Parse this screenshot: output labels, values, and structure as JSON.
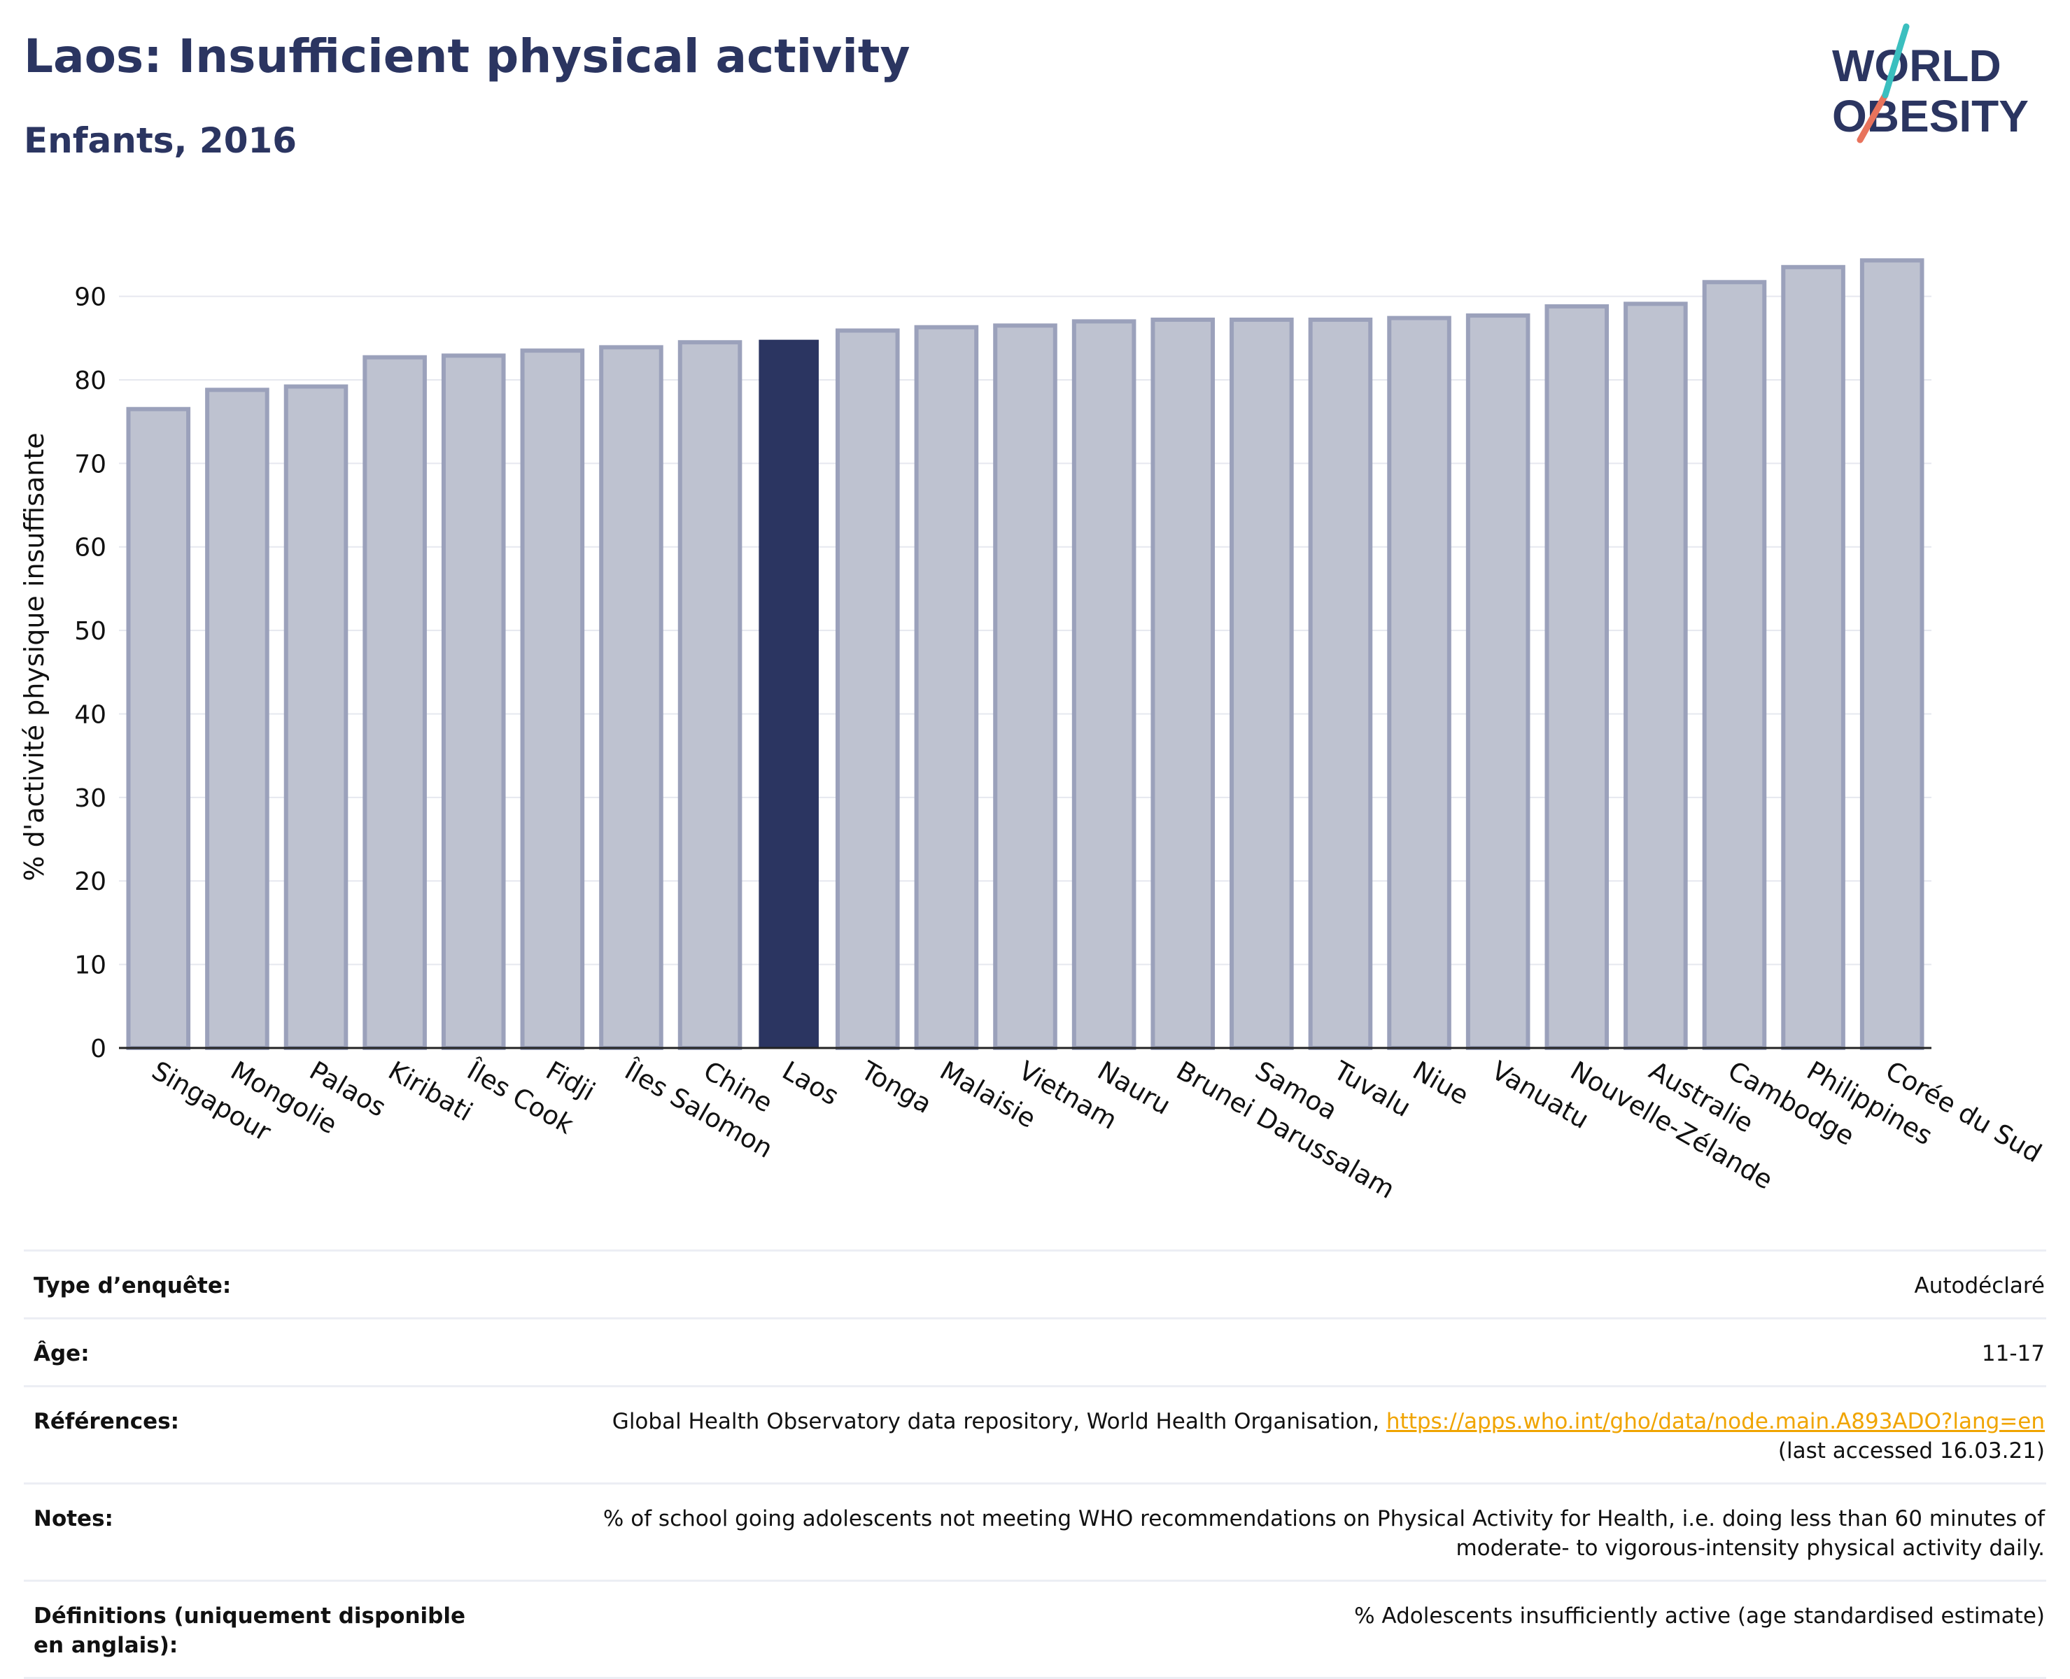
{
  "title": "Laos: Insufficient physical activity",
  "subtitle": "Enfants, 2016",
  "logo": {
    "line1": "WORLD",
    "line2": "OBESITY"
  },
  "colors": {
    "highlight": "#2b3561",
    "bar": "#bec2d0",
    "bar_edge": "#9ba1bb",
    "link": "#f0a400",
    "title": "#2b3561"
  },
  "chart_data": {
    "type": "bar",
    "ylabel": "% d'activité physique insuffisante",
    "xlabel": "",
    "ylim": [
      0,
      97
    ],
    "yticks": [
      0,
      10,
      20,
      30,
      40,
      50,
      60,
      70,
      80,
      90
    ],
    "grid": true,
    "highlight": "Laos",
    "categories": [
      "Singapour",
      "Mongolie",
      "Palaos",
      "Kiribati",
      "Îles Cook",
      "Fidji",
      "Îles Salomon",
      "Chine",
      "Laos",
      "Tonga",
      "Malaisie",
      "Vietnam",
      "Nauru",
      "Brunei Darussalam",
      "Samoa",
      "Tuvalu",
      "Niue",
      "Vanuatu",
      "Nouvelle-Zélande",
      "Australie",
      "Cambodge",
      "Philippines",
      "Corée du Sud"
    ],
    "values": [
      76.5,
      78.8,
      79.2,
      82.7,
      82.9,
      83.5,
      83.9,
      84.5,
      84.8,
      85.9,
      86.3,
      86.5,
      87.0,
      87.2,
      87.2,
      87.2,
      87.4,
      87.7,
      88.8,
      89.1,
      91.7,
      93.5,
      94.3
    ]
  },
  "info": {
    "survey": {
      "label": "Type d’enquête:",
      "value": "Autodéclaré"
    },
    "age": {
      "label": "Âge:",
      "value": "11-17"
    },
    "references": {
      "label": "Références:",
      "text": "Global Health Observatory data repository, World Health Organisation,",
      "link": "https://apps.who.int/gho/data/node.main.A893ADO?lang=en",
      "suffix": "(last accessed 16.03.21)"
    },
    "notes": {
      "label": "Notes:",
      "line1": "% of school going adolescents not meeting WHO recommendations on Physical Activity for Health, i.e. doing less than 60 minutes of",
      "line2": "moderate- to vigorous-intensity physical activity daily."
    },
    "definitions": {
      "label": "Définitions (uniquement disponible en anglais):",
      "value": "% Adolescents insufficiently active (age standardised estimate)"
    }
  }
}
